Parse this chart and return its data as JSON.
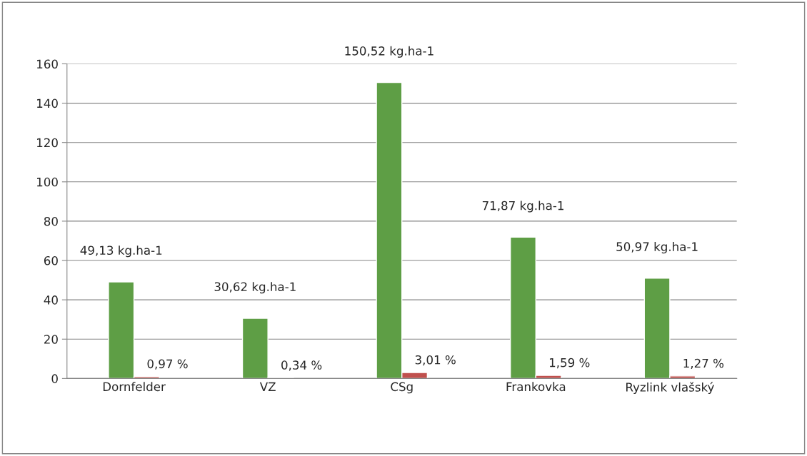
{
  "chart_data": {
    "type": "bar",
    "categories": [
      "Dornfelder",
      "VZ",
      "CSg",
      "Frankovka",
      "Ryzlink vlašský"
    ],
    "series": [
      {
        "color": "#5e9e45",
        "values": [
          49.13,
          30.62,
          150.52,
          71.87,
          50.97
        ],
        "value_labels": [
          "49,13 kg.ha-1",
          "30,62 kg.ha-1",
          "150,52 kg.ha-1",
          "71,87 kg.ha-1",
          "50,97 kg.ha-1"
        ]
      },
      {
        "color": "#c0504d",
        "values": [
          0.97,
          0.34,
          3.01,
          1.59,
          1.27
        ],
        "value_labels": [
          "0,97 %",
          "0,34 %",
          "3,01 %",
          "1,59 %",
          "1,27 %"
        ]
      }
    ],
    "ylim": [
      0,
      160
    ],
    "yticks": [
      0,
      20,
      40,
      60,
      80,
      100,
      120,
      140,
      160
    ],
    "grid": "y"
  }
}
